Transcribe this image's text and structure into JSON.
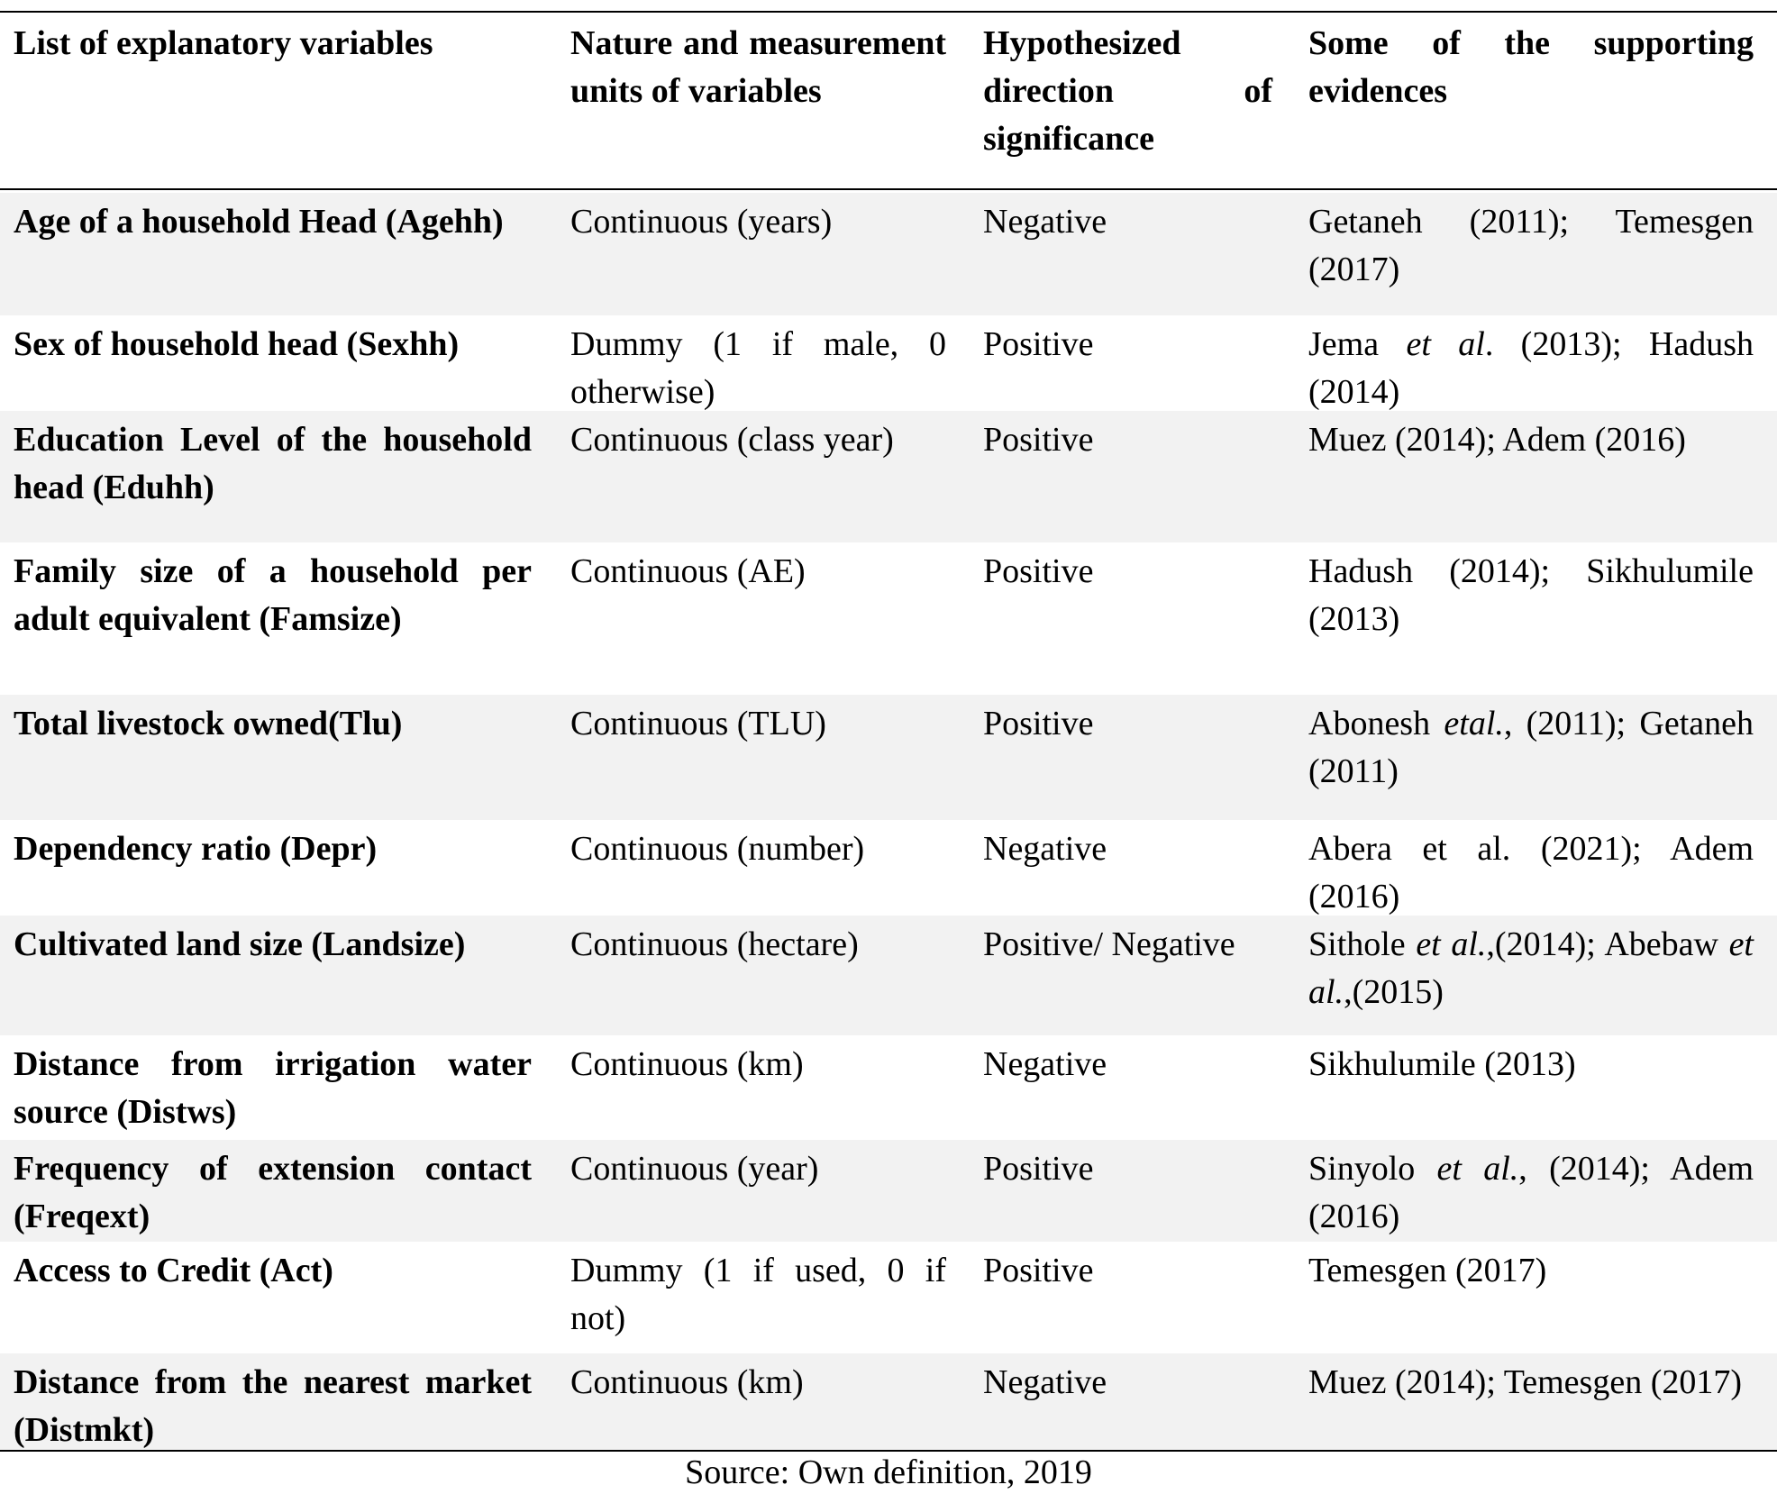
{
  "table": {
    "header": [
      "List of explanatory variables",
      "Nature and measurement units of variables",
      "Hypothesized direction of significance",
      "Some of the supporting evidences"
    ],
    "rows": [
      [
        "Age of a household Head (Agehh)",
        "Continuous (years)",
        "Negative",
        [
          "Getaneh (2011); Temesgen (2017)"
        ]
      ],
      [
        "Sex of household head (Sexhh)",
        "Dummy (1 if male, 0 otherwise)",
        "Positive",
        [
          "Jema ",
          "et al",
          ". (2013); Hadush (2014)"
        ]
      ],
      [
        "Education Level of the household head (Eduhh)",
        "Continuous (class year)",
        "Positive",
        [
          "Muez (2014); Adem (2016)"
        ]
      ],
      [
        "Family size of a household per adult equivalent (Famsize)",
        "Continuous (AE)",
        "Positive",
        [
          "Hadush (2014); Sikhulumile (2013)"
        ]
      ],
      [
        "Total livestock owned(Tlu)",
        "Continuous (TLU)",
        "Positive",
        [
          "Abonesh ",
          "etal.",
          ", (2011); Getaneh (2011)"
        ]
      ],
      [
        "Dependency ratio (Depr)",
        "Continuous (number)",
        "Negative",
        [
          "Abera et al. (2021); Adem (2016)"
        ]
      ],
      [
        "Cultivated land size (Landsize)",
        "Continuous (hectare)",
        "Positive/ Negative",
        [
          "Sithole ",
          "et al.",
          ",(2014); Abebaw ",
          "et al.",
          ",(2015)"
        ]
      ],
      [
        "Distance from irrigation water source (Distws)",
        "Continuous (km)",
        "Negative",
        [
          "Sikhulumile (2013)"
        ]
      ],
      [
        "Frequency of extension contact (Freqext)",
        "Continuous (year)",
        "Positive",
        [
          "Sinyolo ",
          "et al.",
          ", (2014); Adem (2016)"
        ]
      ],
      [
        "Access to Credit (Act)",
        "Dummy (1 if used, 0 if not)",
        "Positive",
        [
          "Temesgen (2017)"
        ]
      ],
      [
        "Distance from the nearest market (Distmkt)",
        "Continuous (km)",
        "Negative",
        [
          "Muez (2014); Temesgen (2017)"
        ]
      ]
    ]
  },
  "source": "Source: Own definition, 2019"
}
